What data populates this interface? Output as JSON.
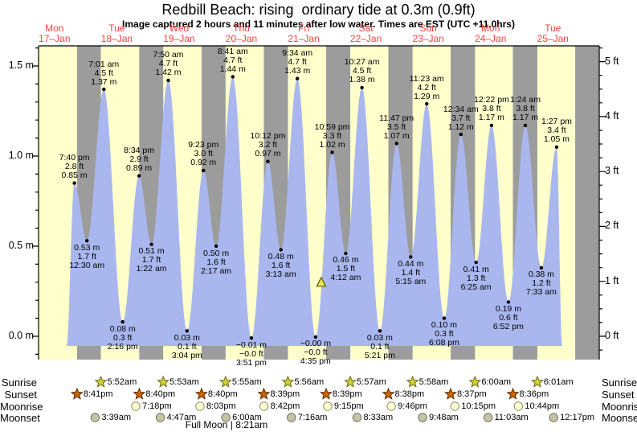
{
  "title": "Redbill Beach: rising  ordinary tide at 0.3m (0.9ft)",
  "subtitle": "Image captured 2 hours and 11 minutes after low water. Times are EST (UTC +11.0hrs)",
  "full_moon_caption": "Full Moon | 8:21am",
  "chart_data": {
    "type": "area",
    "title": "Redbill Beach: rising  ordinary tide at 0.3m (0.9ft)",
    "span_days": 9,
    "time_origin_day": 0,
    "time_origin_time": "5:52am",
    "ylim_m": [
      -0.13,
      1.61
    ],
    "grid": false,
    "days": [
      {
        "dow": "Mon",
        "date": "17–Jan"
      },
      {
        "dow": "Tue",
        "date": "18–Jan"
      },
      {
        "dow": "Wed",
        "date": "19–Jan"
      },
      {
        "dow": "Thu",
        "date": "20–Jan"
      },
      {
        "dow": "Fri",
        "date": "21–Jan"
      },
      {
        "dow": "Sat",
        "date": "22–Jan"
      },
      {
        "dow": "Sun",
        "date": "23–Jan"
      },
      {
        "dow": "Mon",
        "date": "24–Jan"
      },
      {
        "dow": "Tue",
        "date": "25–Jan"
      }
    ],
    "y_axis_left": {
      "unit": "m",
      "ticks": [
        "0.0 m",
        "0.5 m",
        "1.0 m",
        "1.5 m"
      ],
      "values": [
        0,
        0.5,
        1.0,
        1.5
      ]
    },
    "y_axis_right": {
      "unit": "ft",
      "ticks": [
        "0 ft",
        "1 ft",
        "2 ft",
        "3 ft",
        "4 ft",
        "5 ft"
      ],
      "values": [
        0,
        1,
        2,
        3,
        4,
        5
      ]
    },
    "tide_events": [
      {
        "day": 0,
        "time": "7:40 pm",
        "kind": "high",
        "height_m": 0.85,
        "m_label": "0.85 m",
        "ft_label": "2.8 ft"
      },
      {
        "day": 1,
        "time": "12:30 am",
        "kind": "low",
        "height_m": 0.53,
        "m_label": "0.53 m",
        "ft_label": "1.7 ft"
      },
      {
        "day": 1,
        "time": "7:01 am",
        "kind": "high",
        "height_m": 1.37,
        "m_label": "1.37 m",
        "ft_label": "4.5 ft"
      },
      {
        "day": 1,
        "time": "2:16 pm",
        "kind": "low",
        "height_m": 0.08,
        "m_label": "0.08 m",
        "ft_label": "0.3 ft"
      },
      {
        "day": 1,
        "time": "8:34 pm",
        "kind": "high",
        "height_m": 0.89,
        "m_label": "0.89 m",
        "ft_label": "2.9 ft"
      },
      {
        "day": 2,
        "time": "1:22 am",
        "kind": "low",
        "height_m": 0.51,
        "m_label": "0.51 m",
        "ft_label": "1.7 ft"
      },
      {
        "day": 2,
        "time": "7:50 am",
        "kind": "high",
        "height_m": 1.42,
        "m_label": "1.42 m",
        "ft_label": "4.7 ft"
      },
      {
        "day": 2,
        "time": "3:04 pm",
        "kind": "low",
        "height_m": 0.03,
        "m_label": "0.03 m",
        "ft_label": "0.1 ft"
      },
      {
        "day": 2,
        "time": "9:23 pm",
        "kind": "high",
        "height_m": 0.92,
        "m_label": "0.92 m",
        "ft_label": "3.0 ft"
      },
      {
        "day": 3,
        "time": "2:17 am",
        "kind": "low",
        "height_m": 0.5,
        "m_label": "0.50 m",
        "ft_label": "1.6 ft"
      },
      {
        "day": 3,
        "time": "8:41 am",
        "kind": "high",
        "height_m": 1.44,
        "m_label": "1.44 m",
        "ft_label": "4.7 ft"
      },
      {
        "day": 3,
        "time": "3:51 pm",
        "kind": "low",
        "height_m": -0.01,
        "m_label": "−0.01 m",
        "ft_label": "−0.0 ft"
      },
      {
        "day": 3,
        "time": "10:12 pm",
        "kind": "high",
        "height_m": 0.97,
        "m_label": "0.97 m",
        "ft_label": "3.2 ft"
      },
      {
        "day": 4,
        "time": "3:13 am",
        "kind": "low",
        "height_m": 0.48,
        "m_label": "0.48 m",
        "ft_label": "1.6 ft"
      },
      {
        "day": 4,
        "time": "9:34 am",
        "kind": "high",
        "height_m": 1.43,
        "m_label": "1.43 m",
        "ft_label": "4.7 ft"
      },
      {
        "day": 4,
        "time": "4:35 pm",
        "kind": "low",
        "height_m": -0.004,
        "m_label": "−0.00 m",
        "ft_label": "−0.0 ft"
      },
      {
        "day": 4,
        "time": "10:59 pm",
        "kind": "high",
        "height_m": 1.02,
        "m_label": "1.02 m",
        "ft_label": "3.3 ft"
      },
      {
        "day": 5,
        "time": "4:12 am",
        "kind": "low",
        "height_m": 0.46,
        "m_label": "0.46 m",
        "ft_label": "1.5 ft"
      },
      {
        "day": 5,
        "time": "10:27 am",
        "kind": "high",
        "height_m": 1.38,
        "m_label": "1.38 m",
        "ft_label": "4.5 ft"
      },
      {
        "day": 5,
        "time": "5:21 pm",
        "kind": "low",
        "height_m": 0.03,
        "m_label": "0.03 m",
        "ft_label": "0.1 ft"
      },
      {
        "day": 5,
        "time": "11:47 pm",
        "kind": "high",
        "height_m": 1.07,
        "m_label": "1.07 m",
        "ft_label": "3.5 ft"
      },
      {
        "day": 6,
        "time": "5:15 am",
        "kind": "low",
        "height_m": 0.44,
        "m_label": "0.44 m",
        "ft_label": "1.4 ft"
      },
      {
        "day": 6,
        "time": "11:23 am",
        "kind": "high",
        "height_m": 1.29,
        "m_label": "1.29 m",
        "ft_label": "4.2 ft"
      },
      {
        "day": 6,
        "time": "6:08 pm",
        "kind": "low",
        "height_m": 0.1,
        "m_label": "0.10 m",
        "ft_label": "0.3 ft"
      },
      {
        "day": 7,
        "time": "12:34 am",
        "kind": "high",
        "height_m": 1.12,
        "m_label": "1.12 m",
        "ft_label": "3.7 ft"
      },
      {
        "day": 7,
        "time": "6:25 am",
        "kind": "low",
        "height_m": 0.41,
        "m_label": "0.41 m",
        "ft_label": "1.3 ft"
      },
      {
        "day": 7,
        "time": "12:22 pm",
        "kind": "high",
        "height_m": 1.17,
        "m_label": "1.17 m",
        "ft_label": "3.8 ft"
      },
      {
        "day": 7,
        "time": "6:52 pm",
        "kind": "low",
        "height_m": 0.19,
        "m_label": "0.19 m",
        "ft_label": "0.6 ft"
      },
      {
        "day": 8,
        "time": "1:24 am",
        "kind": "high",
        "height_m": 1.17,
        "m_label": "1.17 m",
        "ft_label": "3.8 ft"
      },
      {
        "day": 8,
        "time": "7:33 am",
        "kind": "low",
        "height_m": 0.38,
        "m_label": "0.38 m",
        "ft_label": "1.2 ft"
      },
      {
        "day": 8,
        "time": "1:27 pm",
        "kind": "high",
        "height_m": 1.05,
        "m_label": "1.05 m",
        "ft_label": "3.4 ft"
      }
    ],
    "curve_start": {
      "day": 0,
      "hour": 16.6,
      "height_m": -0.06
    },
    "curve_end": {
      "day": 8,
      "hour": 15.6,
      "height_m": -0.06
    },
    "current_marker": {
      "day": 4,
      "time": "6:46pm",
      "height_m": 0.3
    },
    "sun_moon": {
      "rows": [
        {
          "name": "Sunrise",
          "icon": "sunrise-star",
          "events": [
            {
              "day": 1,
              "time": "5:52am"
            },
            {
              "day": 2,
              "time": "5:53am"
            },
            {
              "day": 3,
              "time": "5:55am"
            },
            {
              "day": 4,
              "time": "5:56am"
            },
            {
              "day": 5,
              "time": "5:57am"
            },
            {
              "day": 6,
              "time": "5:58am"
            },
            {
              "day": 7,
              "time": "6:00am"
            },
            {
              "day": 8,
              "time": "6:01am"
            }
          ]
        },
        {
          "name": "Sunset",
          "icon": "sunset-star",
          "events": [
            {
              "day": 0,
              "time": "8:41pm"
            },
            {
              "day": 1,
              "time": "8:40pm"
            },
            {
              "day": 2,
              "time": "8:40pm"
            },
            {
              "day": 3,
              "time": "8:39pm"
            },
            {
              "day": 4,
              "time": "8:39pm"
            },
            {
              "day": 5,
              "time": "8:38pm"
            },
            {
              "day": 6,
              "time": "8:37pm"
            },
            {
              "day": 7,
              "time": "8:36pm"
            }
          ]
        },
        {
          "name": "Moonrise",
          "icon": "moonrise-circle",
          "events": [
            {
              "day": 1,
              "time": "7:18pm"
            },
            {
              "day": 2,
              "time": "8:03pm"
            },
            {
              "day": 3,
              "time": "8:42pm"
            },
            {
              "day": 4,
              "time": "9:15pm"
            },
            {
              "day": 5,
              "time": "9:46pm"
            },
            {
              "day": 6,
              "time": "10:15pm"
            },
            {
              "day": 7,
              "time": "10:44pm"
            }
          ]
        },
        {
          "name": "Moonset",
          "icon": "moonset-circle",
          "events": [
            {
              "day": 1,
              "time": "3:39am"
            },
            {
              "day": 2,
              "time": "4:47am"
            },
            {
              "day": 3,
              "time": "6:00am"
            },
            {
              "day": 4,
              "time": "7:16am"
            },
            {
              "day": 5,
              "time": "8:33am"
            },
            {
              "day": 6,
              "time": "9:48am"
            },
            {
              "day": 7,
              "time": "11:03am"
            },
            {
              "day": 8,
              "time": "12:17pm"
            }
          ]
        }
      ]
    },
    "colors": {
      "day_band": "#ffffcc",
      "night_band": "#9c9c9c",
      "tide_fill": "#a9b7ee",
      "day_label_red": "#ff4040",
      "axis": "#000000",
      "sunrise_fill": "#cfcf3a",
      "sunrise_stroke": "#6b6b1f",
      "sunset_fill": "#cc6600",
      "sunset_stroke": "#5a2d00",
      "moonrise_fill": "#ffffd9",
      "moonrise_stroke": "#8f8f5a",
      "moonset_fill": "#c4c4a5",
      "moonset_stroke": "#6f6f5f",
      "marker_fill": "#e6e64d",
      "marker_stroke": "#5c5c00"
    }
  }
}
